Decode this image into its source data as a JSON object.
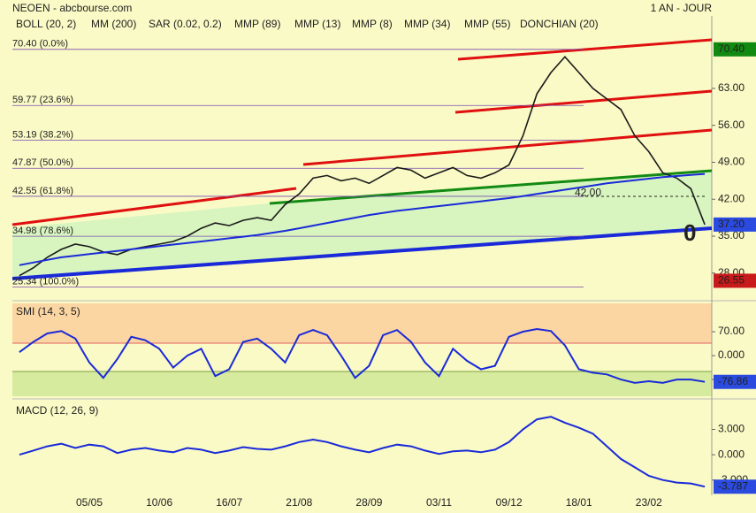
{
  "header": {
    "title": "NEOEN - abcbourse.com",
    "period": "1 AN - JOUR"
  },
  "indicators": [
    {
      "label": "BOLL (20, 2)",
      "color": "#333333"
    },
    {
      "label": "MM (200)",
      "color": "#1a2ad8"
    },
    {
      "label": "SAR (0.02, 0.2)",
      "color": "#d81a1a"
    },
    {
      "label": "MMP (89)",
      "color": "#d81a1a"
    },
    {
      "label": "MMP (13)",
      "color": "#1a2ad8"
    },
    {
      "label": "MMP (8)",
      "color": "#138a13"
    },
    {
      "label": "MMP (34)",
      "color": "#d81a1a"
    },
    {
      "label": "MMP (55)",
      "color": "#1a2ad8"
    },
    {
      "label": "DONCHIAN (20)",
      "color": "#5a6ad8"
    }
  ],
  "chart_data": [
    {
      "type": "line",
      "ylim": [
        23.1,
        76.4
      ],
      "yticks": [
        {
          "value": 28,
          "label": "28.00"
        },
        {
          "value": 35,
          "label": "35.00"
        },
        {
          "value": 42,
          "label": "42.00"
        },
        {
          "value": 49,
          "label": "49.00"
        },
        {
          "value": 56,
          "label": "56.00"
        },
        {
          "value": 63,
          "label": "63.00"
        }
      ],
      "levels": [
        {
          "value": 70.4,
          "label": "70.40 (0.0%)"
        },
        {
          "value": 59.77,
          "label": "59.77 (23.6%)"
        },
        {
          "value": 53.19,
          "label": "53.19 (38.2%)"
        },
        {
          "value": 47.87,
          "label": "47.87 (50.0%)"
        },
        {
          "value": 42.55,
          "label": "42.55 (61.8%)"
        },
        {
          "value": 34.98,
          "label": "34.98 (78.6%)"
        },
        {
          "value": 25.34,
          "label": "25.34 (100.0%)"
        }
      ],
      "level_color": "#7a4bb0",
      "price_tags": [
        {
          "value": 70.4,
          "label": "70.40",
          "color": "#118a11"
        },
        {
          "value": 37.2,
          "label": "37.20",
          "color": "#2a4ae0"
        },
        {
          "value": 26.55,
          "label": "26.55",
          "color": "#c81a1a"
        }
      ],
      "annotations": [
        {
          "value": 42,
          "label": "42.00"
        },
        {
          "label": "0"
        }
      ],
      "series": [
        {
          "color": "#1a1a1a",
          "values": [
            27.5,
            29,
            31,
            32.5,
            33.5,
            33,
            32,
            31.5,
            32.5,
            33,
            33.5,
            34,
            35,
            36.5,
            37.5,
            37,
            38,
            38.5,
            38,
            41,
            43,
            46,
            46.5,
            45.5,
            46,
            45,
            46.5,
            48,
            47.5,
            46,
            47,
            48,
            46.5,
            46,
            47,
            48.5,
            54,
            62,
            66,
            69,
            66,
            63,
            61,
            59,
            54,
            51,
            47,
            46,
            44,
            37.2
          ]
        },
        {
          "color": "#1a2ad8",
          "values": [
            29.5,
            30,
            30.5,
            31,
            31.3,
            31.6,
            31.9,
            32.2,
            32.5,
            32.8,
            33.1,
            33.4,
            33.7,
            34,
            34.3,
            34.6,
            34.9,
            35.2,
            35.6,
            36,
            36.5,
            37,
            37.5,
            38,
            38.5,
            39,
            39.4,
            39.8,
            40.1,
            40.4,
            40.7,
            41,
            41.3,
            41.6,
            41.9,
            42.2,
            42.6,
            43,
            43.4,
            43.8,
            44.2,
            44.6,
            45,
            45.3,
            45.6,
            45.9,
            46.2,
            46.4,
            46.6,
            46.8
          ]
        }
      ]
    },
    {
      "type": "line",
      "title": "SMI (14, 3, 5)",
      "ylim": [
        -119,
        153
      ],
      "yticks": [
        {
          "value": 70,
          "label": "70.00"
        },
        {
          "value": 0,
          "label": "0.000"
        },
        {
          "value": -70,
          "label": "-70.00"
        }
      ],
      "tag": {
        "value": -76.86,
        "label": "-76.86",
        "color": "#2a4ae0"
      },
      "series": [
        {
          "color": "#1a2ad8",
          "values": [
            10,
            40,
            65,
            72,
            50,
            -20,
            -65,
            -10,
            55,
            45,
            20,
            -35,
            0,
            20,
            -60,
            -40,
            40,
            50,
            20,
            -20,
            60,
            75,
            60,
            0,
            -65,
            -30,
            60,
            75,
            40,
            -20,
            -60,
            20,
            -15,
            -40,
            -30,
            55,
            70,
            78,
            72,
            30,
            -40,
            -50,
            -55,
            -70,
            -80,
            -75,
            -80,
            -70,
            -70,
            -76.86
          ]
        }
      ]
    },
    {
      "type": "line",
      "title": "MACD (12, 26, 9)",
      "ylim": [
        -4.6,
        6.2
      ],
      "yticks": [
        {
          "value": 3,
          "label": "3.000"
        },
        {
          "value": 0,
          "label": "0.000"
        },
        {
          "value": -3,
          "label": "-3.000"
        }
      ],
      "tag": {
        "value": -3.787,
        "label": "-3.787",
        "color": "#2a4ae0"
      },
      "categories": [
        null,
        null,
        null,
        null,
        null,
        "05/05",
        null,
        null,
        null,
        null,
        "10/06",
        null,
        null,
        null,
        null,
        "16/07",
        null,
        null,
        null,
        null,
        "21/08",
        null,
        null,
        null,
        null,
        "28/09",
        null,
        null,
        null,
        null,
        "03/11",
        null,
        null,
        null,
        null,
        "09/12",
        null,
        null,
        null,
        null,
        "18/01",
        null,
        null,
        null,
        null,
        "23/02",
        null,
        null,
        null,
        null
      ],
      "series": [
        {
          "color": "#1a2ad8",
          "values": [
            0,
            0.5,
            1,
            1.3,
            0.8,
            1.2,
            1,
            0.2,
            0.6,
            0.8,
            0.5,
            0.3,
            0.8,
            0.6,
            0.2,
            0.5,
            0.9,
            0.7,
            0.6,
            1,
            1.5,
            1.8,
            1.5,
            1,
            0.6,
            0.3,
            0.8,
            1.2,
            1,
            0.5,
            0.1,
            0.4,
            0.5,
            0.3,
            0.6,
            1.5,
            3,
            4.2,
            4.5,
            3.8,
            3.2,
            2.5,
            1,
            -0.5,
            -1.5,
            -2.5,
            -3,
            -3.3,
            -3.4,
            -3.787
          ]
        }
      ]
    }
  ]
}
